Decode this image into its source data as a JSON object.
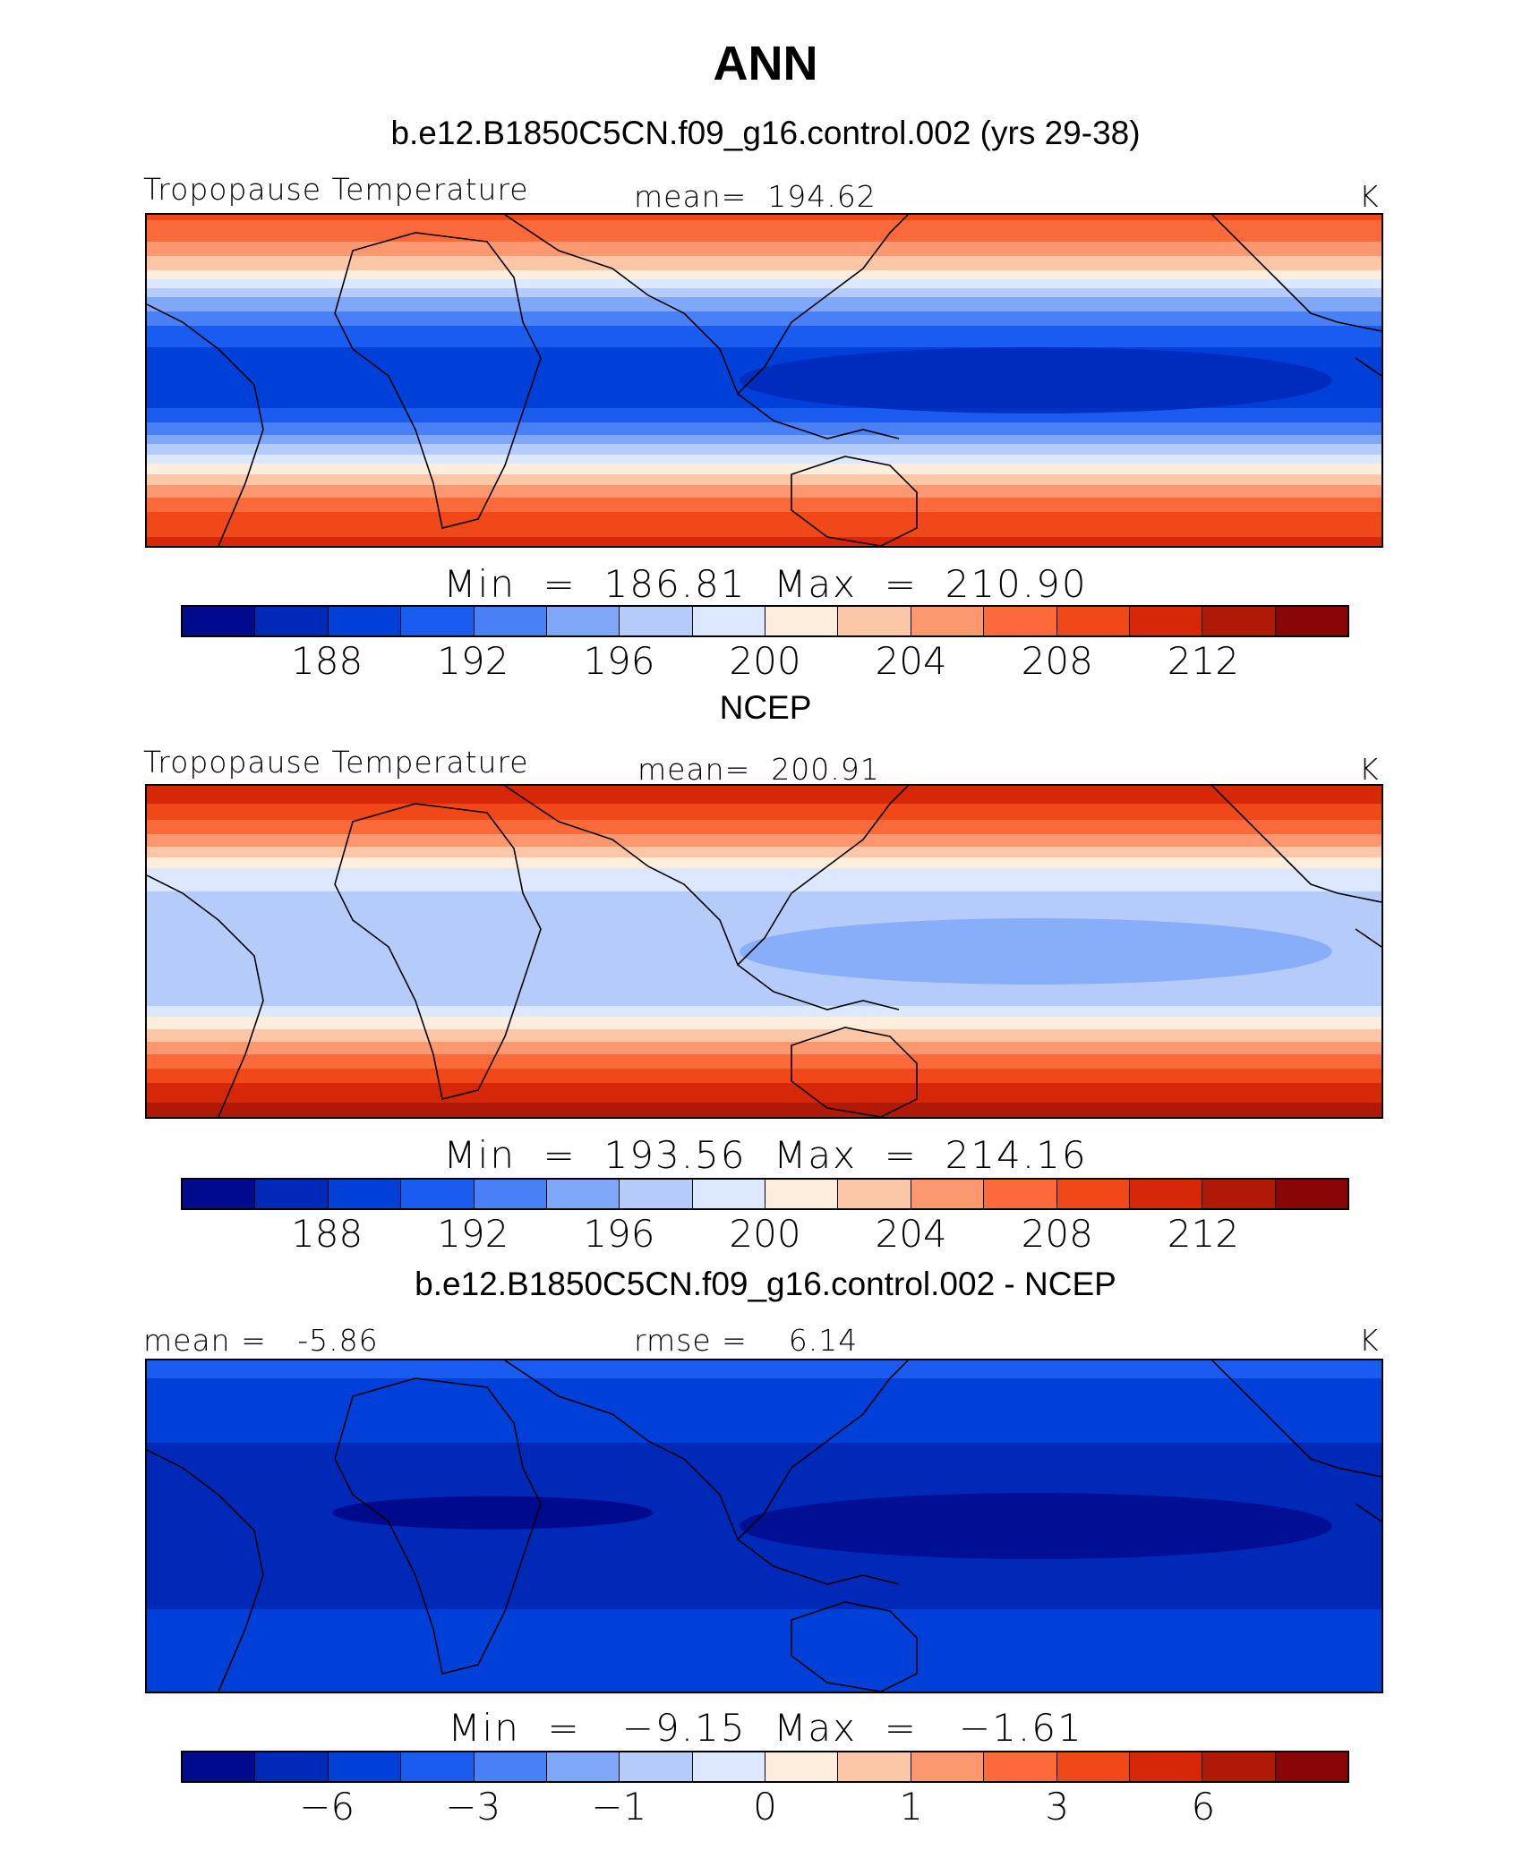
{
  "figure_title": "ANN",
  "chart_data": [
    {
      "type": "heatmap",
      "case_title": "b.e12.B1850C5CN.f09_g16.control.002 (yrs 29-38)",
      "left_label": "Tropopause Temperature",
      "center_label": "mean=  194.62",
      "units": "K",
      "minmax": "Min  =  186.81  Max  =  210.90",
      "min": 186.81,
      "max": 210.9,
      "mean": 194.62,
      "colorbar_ticks": [
        "188",
        "192",
        "196",
        "200",
        "204",
        "208",
        "212"
      ],
      "colorbar_levels": [
        186,
        188,
        190,
        192,
        194,
        196,
        198,
        200,
        202,
        204,
        206,
        208,
        210,
        212,
        214
      ],
      "field": {
        "description_lat_profile": "warm poles, cold tropics",
        "lat_deg": [
          60,
          50,
          40,
          30,
          20,
          10,
          0,
          -10,
          -20,
          -30,
          -40,
          -50,
          -60
        ],
        "zonal_mean_K": [
          208.5,
          206,
          202,
          196,
          192,
          189.5,
          189,
          190,
          194,
          200,
          205,
          209,
          210.5
        ]
      }
    },
    {
      "type": "heatmap",
      "case_title": "NCEP",
      "left_label": "Tropopause Temperature",
      "center_label": "mean=  200.91",
      "units": "K",
      "minmax": "Min  =  193.56  Max  =  214.16",
      "min": 193.56,
      "max": 214.16,
      "mean": 200.91,
      "colorbar_ticks": [
        "188",
        "192",
        "196",
        "200",
        "204",
        "208",
        "212"
      ],
      "colorbar_levels": [
        186,
        188,
        190,
        192,
        194,
        196,
        198,
        200,
        202,
        204,
        206,
        208,
        210,
        212,
        214
      ],
      "field": {
        "lat_deg": [
          60,
          50,
          40,
          30,
          20,
          10,
          0,
          -10,
          -20,
          -30,
          -40,
          -50,
          -60
        ],
        "zonal_mean_K": [
          212,
          209,
          205,
          200,
          197.5,
          196.5,
          196.5,
          196.5,
          198,
          203,
          207,
          211,
          213
        ]
      }
    },
    {
      "type": "heatmap",
      "case_title": "b.e12.B1850C5CN.f09_g16.control.002 - NCEP",
      "left_label": "mean =   -5.86",
      "center_label": "rmse =    6.14",
      "units": "K",
      "minmax": "Min  =   −9.15  Max  =   −1.61",
      "min": -9.15,
      "max": -1.61,
      "mean": -5.86,
      "rmse": 6.14,
      "colorbar_ticks": [
        "−6",
        "−3",
        "−1",
        "0",
        "1",
        "3",
        "6"
      ],
      "colorbar_levels": [
        -8,
        -6,
        -4,
        -3,
        -2,
        -1,
        -0.5,
        0,
        0.5,
        1,
        2,
        3,
        4,
        6,
        8
      ],
      "field": {
        "lat_deg": [
          60,
          50,
          40,
          30,
          20,
          10,
          0,
          -10,
          -20,
          -30,
          -40,
          -50,
          -60
        ],
        "zonal_mean_K": [
          -3,
          -4.5,
          -5.5,
          -6,
          -6.5,
          -7.5,
          -8,
          -7.5,
          -6.5,
          -6,
          -5.5,
          -5,
          -5
        ]
      }
    }
  ],
  "colorbar_colors": [
    "#000a8c",
    "#0029b8",
    "#0040d8",
    "#1a5cf0",
    "#4a80f5",
    "#80a8f8",
    "#b5ccfb",
    "#dbe8fd",
    "#fdeddc",
    "#fcc7a6",
    "#fb9870",
    "#fa6a3a",
    "#f04818",
    "#d62808",
    "#b01808",
    "#8a0606"
  ]
}
